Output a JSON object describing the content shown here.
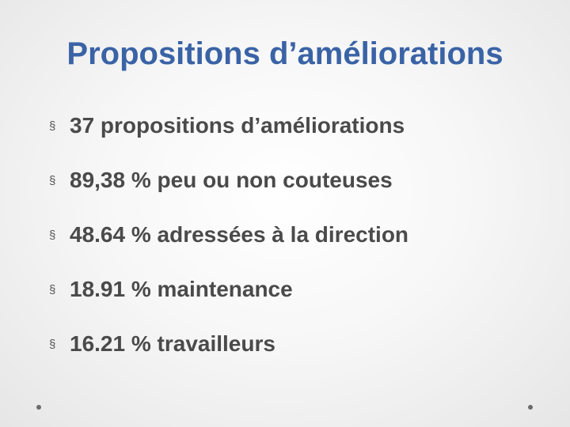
{
  "slide": {
    "title": "Propositions d’améliorations",
    "bullet_marker": "§",
    "bullets": [
      "37 propositions d’améliorations",
      "89,38 % peu ou non couteuses",
      "48.64 % adressées à la direction",
      "18.91 % maintenance",
      "16.21 % travailleurs"
    ]
  },
  "colors": {
    "title": "#3a63a6",
    "body_text": "#4a4a4a"
  }
}
